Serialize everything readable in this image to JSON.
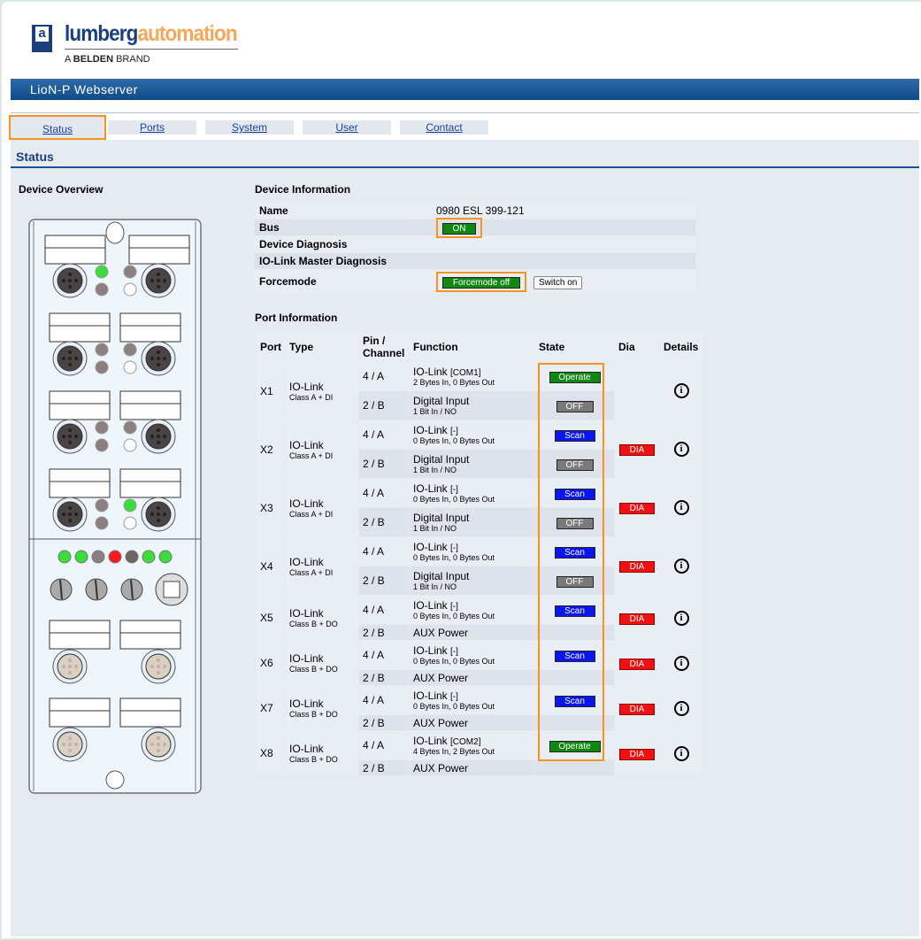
{
  "logo": {
    "mark": "a",
    "word1": "lumberg",
    "word2": "automation",
    "brand_prefix": "A ",
    "brand_bold": "BELDEN",
    "brand_suffix": " BRAND"
  },
  "banner": "LioN-P Webserver",
  "tabs": [
    {
      "label": "Status",
      "active": true
    },
    {
      "label": "Ports"
    },
    {
      "label": "System"
    },
    {
      "label": "User"
    },
    {
      "label": "Contact"
    }
  ],
  "page_title": "Status",
  "device_overview": {
    "title": "Device Overview",
    "port_leds": [
      [
        "#3bdc3b",
        "#8c7f7f",
        "#8c7f7f",
        "#ffffff"
      ],
      [
        "#8c7f7f",
        "#8c7f7f",
        "#8c7f7f",
        "#ffffff"
      ],
      [
        "#8c7f7f",
        "#8c7f7f",
        "#8c7f7f",
        "#ffffff"
      ],
      [
        "#8c7f7f",
        "#8c7f7f",
        "#3bdc3b",
        "#ffffff"
      ]
    ],
    "status_leds": [
      "#3bdc3b",
      "#3bdc3b",
      "#8c7f7f",
      "#ff1a1a",
      "#6e6464",
      "#3bdc3b",
      "#3bdc3b"
    ]
  },
  "device_info": {
    "title": "Device Information",
    "name_label": "Name",
    "name_value": "0980 ESL 399-121",
    "bus_label": "Bus",
    "bus_value": "ON",
    "device_diag_label": "Device Diagnosis",
    "iolink_diag_label": "IO-Link Master Diagnosis",
    "forcemode_label": "Forcemode",
    "forcemode_value": "Forcemode off",
    "switch_button": "Switch on"
  },
  "colors": {
    "green": "#118811",
    "gray": "#7a7a7a",
    "blue": "#0a16ee",
    "red": "#ee1111",
    "highlight": "#f7941d"
  },
  "port_info": {
    "title": "Port Information",
    "headers": [
      "Port",
      "Type",
      "Pin / Channel",
      "Function",
      "State",
      "Dia",
      "Details"
    ],
    "ports": [
      {
        "port": "X1",
        "type": "IO-Link",
        "class": "Class A + DI",
        "dia": "",
        "channels": [
          {
            "pin": "4 / A",
            "func": "IO-Link",
            "tag": "[COM1]",
            "sub": "2 Bytes In, 0 Bytes Out",
            "state": "Operate",
            "state_color": "green"
          },
          {
            "pin": "2 / B",
            "func": "Digital Input",
            "sub": "1 Bit In / NO",
            "state": "OFF",
            "state_color": "gray"
          }
        ]
      },
      {
        "port": "X2",
        "type": "IO-Link",
        "class": "Class A + DI",
        "dia": "DIA",
        "channels": [
          {
            "pin": "4 / A",
            "func": "IO-Link",
            "tag": "[-]",
            "sub": "0 Bytes In, 0 Bytes Out",
            "state": "Scan",
            "state_color": "blue"
          },
          {
            "pin": "2 / B",
            "func": "Digital Input",
            "sub": "1 Bit In / NO",
            "state": "OFF",
            "state_color": "gray"
          }
        ]
      },
      {
        "port": "X3",
        "type": "IO-Link",
        "class": "Class A + DI",
        "dia": "DIA",
        "channels": [
          {
            "pin": "4 / A",
            "func": "IO-Link",
            "tag": "[-]",
            "sub": "0 Bytes In, 0 Bytes Out",
            "state": "Scan",
            "state_color": "blue"
          },
          {
            "pin": "2 / B",
            "func": "Digital Input",
            "sub": "1 Bit In / NO",
            "state": "OFF",
            "state_color": "gray"
          }
        ]
      },
      {
        "port": "X4",
        "type": "IO-Link",
        "class": "Class A + DI",
        "dia": "DIA",
        "channels": [
          {
            "pin": "4 / A",
            "func": "IO-Link",
            "tag": "[-]",
            "sub": "0 Bytes In, 0 Bytes Out",
            "state": "Scan",
            "state_color": "blue"
          },
          {
            "pin": "2 / B",
            "func": "Digital Input",
            "sub": "1 Bit In / NO",
            "state": "OFF",
            "state_color": "gray"
          }
        ]
      },
      {
        "port": "X5",
        "type": "IO-Link",
        "class": "Class B + DO",
        "dia": "DIA",
        "channels": [
          {
            "pin": "4 / A",
            "func": "IO-Link",
            "tag": "[-]",
            "sub": "0 Bytes In, 0 Bytes Out",
            "state": "Scan",
            "state_color": "blue"
          },
          {
            "pin": "2 / B",
            "func": "AUX Power",
            "sub": "",
            "state": ""
          }
        ]
      },
      {
        "port": "X6",
        "type": "IO-Link",
        "class": "Class B + DO",
        "dia": "DIA",
        "channels": [
          {
            "pin": "4 / A",
            "func": "IO-Link",
            "tag": "[-]",
            "sub": "0 Bytes In, 0 Bytes Out",
            "state": "Scan",
            "state_color": "blue"
          },
          {
            "pin": "2 / B",
            "func": "AUX Power",
            "sub": "",
            "state": ""
          }
        ]
      },
      {
        "port": "X7",
        "type": "IO-Link",
        "class": "Class B + DO",
        "dia": "DIA",
        "channels": [
          {
            "pin": "4 / A",
            "func": "IO-Link",
            "tag": "[-]",
            "sub": "0 Bytes In, 0 Bytes Out",
            "state": "Scan",
            "state_color": "blue"
          },
          {
            "pin": "2 / B",
            "func": "AUX Power",
            "sub": "",
            "state": ""
          }
        ]
      },
      {
        "port": "X8",
        "type": "IO-Link",
        "class": "Class B + DO",
        "dia": "DIA",
        "channels": [
          {
            "pin": "4 / A",
            "func": "IO-Link",
            "tag": "[COM2]",
            "sub": "4 Bytes In, 2 Bytes Out",
            "state": "Operate",
            "state_color": "green"
          },
          {
            "pin": "2 / B",
            "func": "AUX Power",
            "sub": "",
            "state": ""
          }
        ]
      }
    ]
  }
}
